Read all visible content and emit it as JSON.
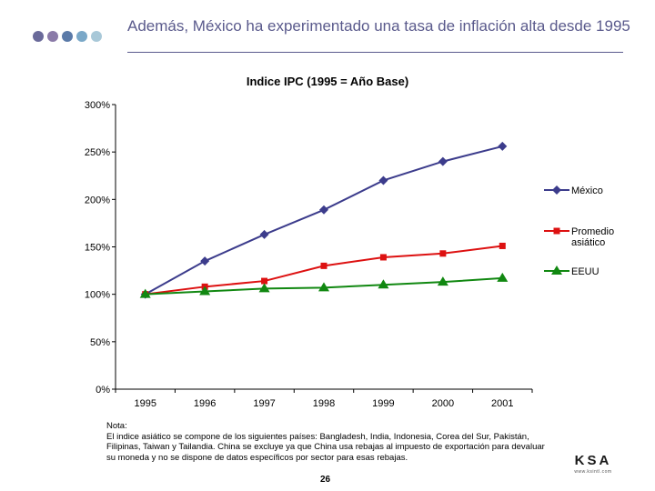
{
  "header": {
    "title": "Además, México ha experimentado una tasa de inflación alta desde 1995",
    "dot_colors": [
      "#6a6a9a",
      "#8a7aa8",
      "#5a7aa8",
      "#7aa8c8",
      "#a8c8d8"
    ]
  },
  "chart_data": {
    "type": "line",
    "title": "Indice IPC (1995 = Año Base)",
    "categories": [
      "1995",
      "1996",
      "1997",
      "1998",
      "1999",
      "2000",
      "2001"
    ],
    "ylim": [
      0,
      300
    ],
    "yticks": [
      "0%",
      "50%",
      "100%",
      "150%",
      "200%",
      "250%",
      "300%"
    ],
    "y_unit": "%",
    "grid": false,
    "legend_position": "right",
    "series": [
      {
        "name": "México",
        "color": "#3c3c8c",
        "marker": "diamond",
        "values": [
          100,
          135,
          163,
          189,
          220,
          240,
          256
        ]
      },
      {
        "name": "Promedio asiático",
        "color": "#dd1111",
        "marker": "square",
        "values": [
          100,
          108,
          114,
          130,
          139,
          143,
          151
        ]
      },
      {
        "name": "EEUU",
        "color": "#118811",
        "marker": "triangle",
        "values": [
          100,
          103,
          106,
          107,
          110,
          113,
          117
        ]
      }
    ]
  },
  "footer": {
    "note_label": "Nota:",
    "note_text": "El indice asiático se compone de los siguientes países: Bangladesh, India, Indonesia, Corea del Sur, Pakistán, Filipinas, Taiwan y Tailandia. China se excluye ya que China usa rebajas al impuesto de exportación para devaluar su moneda y no se dispone de datos específicos por sector para esas rebajas.",
    "page_number": "26",
    "logo": "KSA",
    "logo_tagline": "www.ksintl.com"
  }
}
